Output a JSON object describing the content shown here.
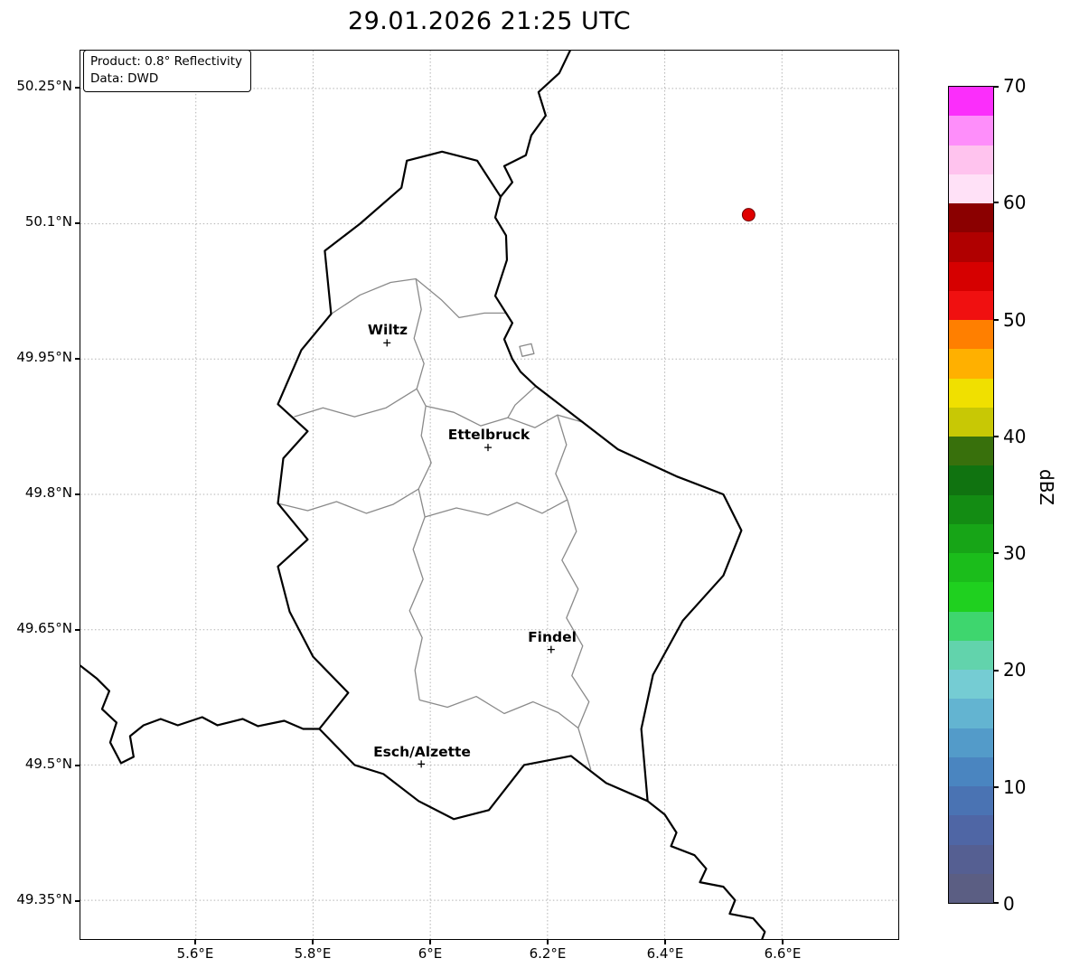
{
  "title": "29.01.2026 21:25 UTC",
  "info_box": {
    "product": "Product: 0.8° Reflectivity",
    "data_source": "Data: DWD"
  },
  "axes": {
    "y_tick_labels": [
      "50.25°N",
      "50.1°N",
      "49.95°N",
      "49.8°N",
      "49.65°N",
      "49.5°N",
      "49.35°N"
    ],
    "x_tick_labels": [
      "5.6°E",
      "5.8°E",
      "6°E",
      "6.2°E",
      "6.4°E",
      "6.6°E"
    ]
  },
  "map": {
    "cities": [
      {
        "name": "Wiltz"
      },
      {
        "name": "Ettelbruck"
      },
      {
        "name": "Findel"
      },
      {
        "name": "Esch/Alzette"
      }
    ],
    "echo_color": "#e00000",
    "echo_edge_color": "#6e0000",
    "country_border_color": "#000000",
    "district_border_color": "#8a8a8a",
    "grid_color": "#b3b3b3"
  },
  "colorbar": {
    "label": "dBZ",
    "tick_labels": [
      "70",
      "60",
      "50",
      "40",
      "30",
      "20",
      "10",
      "0"
    ],
    "colors_top_to_bottom": [
      "#fb2efb",
      "#fe8efa",
      "#ffc3ee",
      "#ffe1f7",
      "#8b0000",
      "#b00000",
      "#d60000",
      "#f01010",
      "#ff7f00",
      "#ffb000",
      "#f0e000",
      "#c8c805",
      "#38700c",
      "#107310",
      "#138c13",
      "#17a517",
      "#1bbd1b",
      "#1fd01f",
      "#3ed66e",
      "#62d3ac",
      "#75ccd3",
      "#63b4d1",
      "#539bc9",
      "#4a85c0",
      "#4a73b3",
      "#4f66a5",
      "#555f92",
      "#5b5e83"
    ]
  }
}
